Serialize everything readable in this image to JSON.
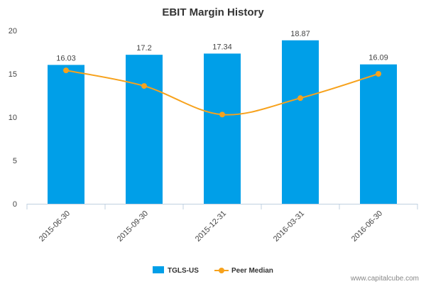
{
  "chart_data": {
    "type": "bar",
    "title": "EBIT Margin History",
    "categories": [
      "2015-06-30",
      "2015-09-30",
      "2015-12-31",
      "2016-03-31",
      "2016-06-30"
    ],
    "series": [
      {
        "name": "TGLS-US",
        "kind": "bar",
        "color": "#009FE8",
        "values": [
          16.03,
          17.2,
          17.34,
          18.87,
          16.09
        ],
        "labels": [
          "16.03",
          "17.2",
          "17.34",
          "18.87",
          "16.09"
        ]
      },
      {
        "name": "Peer Median",
        "kind": "line",
        "color": "#F7A21C",
        "values": [
          15.4,
          13.6,
          10.3,
          12.2,
          15.0
        ]
      }
    ],
    "ylim": [
      0,
      20
    ],
    "yticks": [
      "0",
      "5",
      "10",
      "15",
      "20"
    ],
    "grid": false,
    "legend_position": "bottom"
  },
  "watermark": "www.capitalcube.com"
}
